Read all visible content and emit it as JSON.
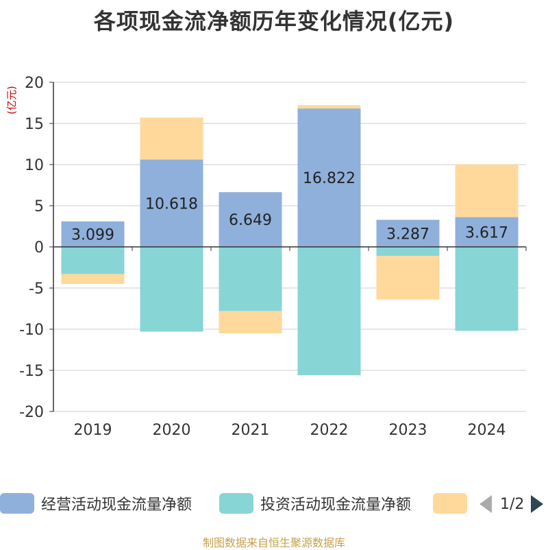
{
  "chart_data": {
    "type": "bar",
    "stacked": true,
    "title": "各项现金流净额历年变化情况(亿元)",
    "ylabel": "(亿元)",
    "xlabel": "",
    "ylim": [
      -20,
      20
    ],
    "yticks": [
      20,
      15,
      10,
      5,
      0,
      -5,
      -10,
      -15,
      -20
    ],
    "categories": [
      "2019",
      "2020",
      "2021",
      "2022",
      "2023",
      "2024"
    ],
    "series": [
      {
        "name": "经营活动现金流量净额",
        "color": "#8fb0db",
        "values": [
          3.099,
          10.618,
          6.649,
          16.822,
          3.287,
          3.617
        ],
        "show_labels": true
      },
      {
        "name": "投资活动现金流量净额",
        "color": "#88d5d6",
        "values": [
          -3.3,
          -10.3,
          -7.8,
          -15.6,
          -1.1,
          -10.2
        ],
        "show_labels": false
      },
      {
        "name": "",
        "color": "#ffd99b",
        "values": [
          -1.2,
          5.1,
          -2.7,
          0.4,
          -5.3,
          6.4
        ],
        "show_labels": false
      }
    ],
    "legend": {
      "position": "bottom",
      "page": "1/2"
    }
  },
  "source": "制图数据来自恒生聚源数据库"
}
